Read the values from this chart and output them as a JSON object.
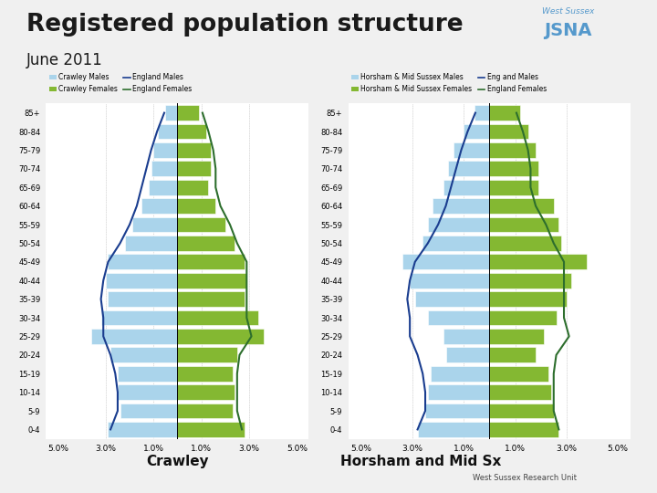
{
  "title": "Registered population structure",
  "subtitle": "June 2011",
  "background_color": "#f0f0f0",
  "age_groups_display": [
    "85+",
    "80-84",
    "75-79",
    "70-74",
    "65-69",
    "60-64",
    "55-59",
    "50-54",
    "45-49",
    "40-44",
    "35-39",
    "30-34",
    "25-29",
    "20-24",
    "15-19",
    "10-14",
    "5-9",
    "0-4"
  ],
  "crawley": {
    "males_bars": [
      0.5,
      0.8,
      1.0,
      1.1,
      1.2,
      1.5,
      1.9,
      2.2,
      2.9,
      3.0,
      2.9,
      3.2,
      3.6,
      2.8,
      2.5,
      2.5,
      2.4,
      2.9
    ],
    "females_bars": [
      0.9,
      1.2,
      1.4,
      1.4,
      1.3,
      1.6,
      2.0,
      2.4,
      2.8,
      2.9,
      2.8,
      3.4,
      3.6,
      2.5,
      2.3,
      2.4,
      2.3,
      2.8
    ],
    "males_line": [
      0.55,
      0.85,
      1.1,
      1.3,
      1.5,
      1.7,
      2.0,
      2.4,
      2.9,
      3.1,
      3.2,
      3.1,
      3.1,
      2.8,
      2.6,
      2.5,
      2.5,
      2.8
    ],
    "females_line": [
      1.05,
      1.3,
      1.5,
      1.6,
      1.6,
      1.8,
      2.2,
      2.5,
      2.9,
      2.9,
      2.9,
      2.9,
      3.1,
      2.6,
      2.5,
      2.5,
      2.5,
      2.7
    ],
    "label_males": "Crawley Males",
    "label_females": "Crawley Females",
    "label_line_m": "England Males",
    "label_line_f": "England Females"
  },
  "horsham": {
    "males_bars": [
      0.6,
      1.0,
      1.4,
      1.6,
      1.8,
      2.2,
      2.4,
      2.6,
      3.4,
      3.1,
      2.9,
      2.4,
      1.8,
      1.7,
      2.3,
      2.4,
      2.5,
      2.8
    ],
    "females_bars": [
      1.2,
      1.5,
      1.8,
      1.9,
      1.9,
      2.5,
      2.7,
      2.8,
      3.8,
      3.2,
      3.0,
      2.6,
      2.1,
      1.8,
      2.3,
      2.4,
      2.5,
      2.7
    ],
    "males_line": [
      0.55,
      0.85,
      1.1,
      1.3,
      1.5,
      1.7,
      2.0,
      2.4,
      2.9,
      3.1,
      3.2,
      3.1,
      3.1,
      2.8,
      2.6,
      2.5,
      2.5,
      2.8
    ],
    "females_line": [
      1.05,
      1.3,
      1.5,
      1.6,
      1.6,
      1.8,
      2.2,
      2.5,
      2.9,
      2.9,
      2.9,
      2.9,
      3.1,
      2.6,
      2.5,
      2.5,
      2.5,
      2.7
    ],
    "label_males": "Horsham & Mid Sussex Males",
    "label_females": "Horsham & Mid Sussex Females",
    "label_line_m": "Eng and Males",
    "label_line_f": "England Females"
  },
  "colors": {
    "bar_male": "#aad4eb",
    "bar_female": "#84b832",
    "line_male": "#1a3d8f",
    "line_female": "#2d6e2d"
  },
  "bottom_label_crawley": "Crawley",
  "bottom_label_horsham": "Horsham and Mid Sx",
  "xtick_labels": [
    "5.0%",
    "3.0%",
    "1.0%",
    "1.0%",
    "3.0%",
    "5.0%"
  ],
  "xtick_vals": [
    -5,
    -3,
    -1,
    1,
    3,
    5
  ]
}
